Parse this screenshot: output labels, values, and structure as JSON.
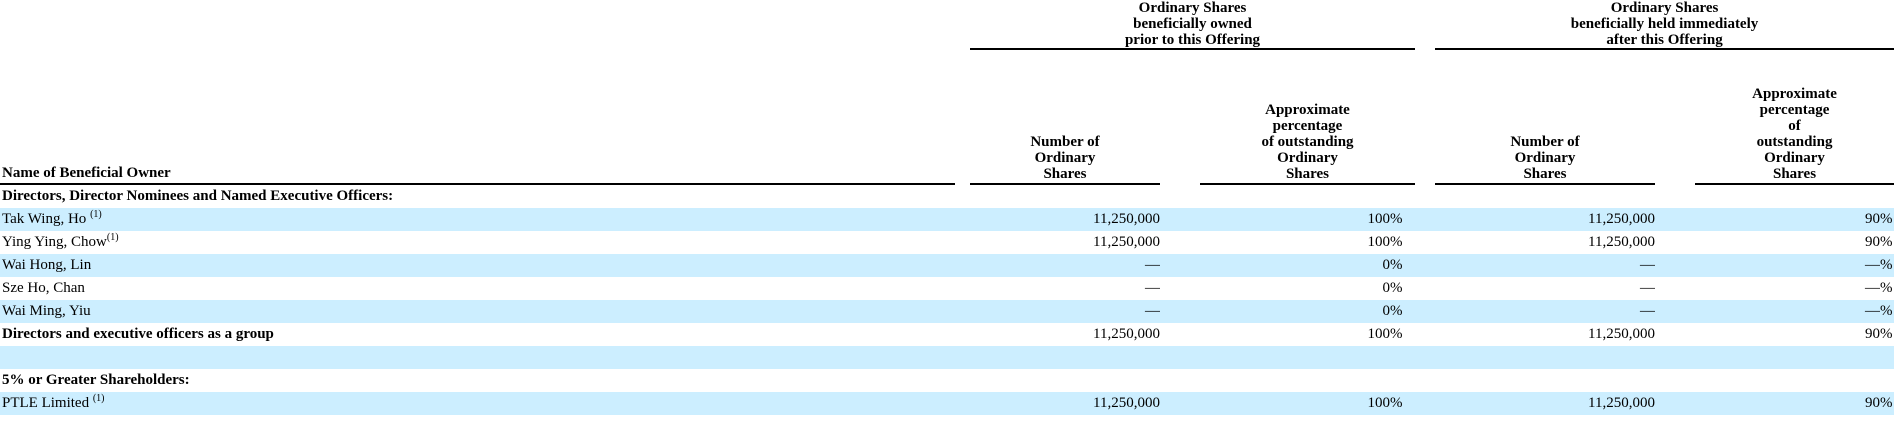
{
  "colors": {
    "row_highlight": "#cceeff",
    "rule": "#000000",
    "text": "#000000",
    "background": "#ffffff"
  },
  "table": {
    "group_headers": [
      {
        "label": "Ordinary Shares\nbeneficially owned\nprior to this Offering"
      },
      {
        "label": "Ordinary Shares\nbeneficially held immediately\nafter this Offering"
      }
    ],
    "columns": {
      "name": "Name of Beneficial Owner",
      "num_prior": "Number of\nOrdinary\nShares",
      "pct_prior": "Approximate\npercentage\nof outstanding\nOrdinary\nShares",
      "num_after": "Number of\nOrdinary\nShares",
      "pct_after": "Approximate\npercentage\nof\noutstanding\nOrdinary\nShares"
    },
    "rows": [
      {
        "label": "Directors, Director Nominees and Named Executive Officers:",
        "sup": "",
        "bold": true,
        "shaded": false,
        "num_prior": "",
        "pct_prior": "",
        "sign_prior": "",
        "num_after": "",
        "pct_after": "",
        "sign_after": ""
      },
      {
        "label": "Tak Wing, Ho ",
        "sup": "(1)",
        "bold": false,
        "shaded": true,
        "num_prior": "11,250,000",
        "pct_prior": "100",
        "sign_prior": "%",
        "num_after": "11,250,000",
        "pct_after": "90",
        "sign_after": "%"
      },
      {
        "label": "Ying Ying, Chow",
        "sup": "(1)",
        "bold": false,
        "shaded": false,
        "num_prior": "11,250,000",
        "pct_prior": "100",
        "sign_prior": "%",
        "num_after": "11,250,000",
        "pct_after": "90",
        "sign_after": "%"
      },
      {
        "label": "Wai Hong, Lin",
        "sup": "",
        "bold": false,
        "shaded": true,
        "num_prior": "—",
        "pct_prior": "0",
        "sign_prior": "%",
        "num_after": "—",
        "pct_after": "—",
        "sign_after": "%"
      },
      {
        "label": "Sze Ho, Chan",
        "sup": "",
        "bold": false,
        "shaded": false,
        "num_prior": "—",
        "pct_prior": "0",
        "sign_prior": "%",
        "num_after": "—",
        "pct_after": "—",
        "sign_after": "%"
      },
      {
        "label": "Wai Ming, Yiu",
        "sup": "",
        "bold": false,
        "shaded": true,
        "num_prior": "—",
        "pct_prior": "0",
        "sign_prior": "%",
        "num_after": "—",
        "pct_after": "—",
        "sign_after": "%"
      },
      {
        "label": "Directors and executive officers as a group",
        "sup": "",
        "bold": true,
        "shaded": false,
        "num_prior": "11,250,000",
        "pct_prior": "100",
        "sign_prior": "%",
        "num_after": "11,250,000",
        "pct_after": "90",
        "sign_after": "%"
      },
      {
        "label": "",
        "sup": "",
        "bold": false,
        "shaded": true,
        "num_prior": "",
        "pct_prior": "",
        "sign_prior": "",
        "num_after": "",
        "pct_after": "",
        "sign_after": ""
      },
      {
        "label": "5% or Greater Shareholders:",
        "sup": "",
        "bold": true,
        "shaded": false,
        "num_prior": "",
        "pct_prior": "",
        "sign_prior": "",
        "num_after": "",
        "pct_after": "",
        "sign_after": ""
      },
      {
        "label": "PTLE Limited ",
        "sup": "(1)",
        "bold": false,
        "shaded": true,
        "num_prior": "11,250,000",
        "pct_prior": "100",
        "sign_prior": "%",
        "num_after": "11,250,000",
        "pct_after": "90",
        "sign_after": "%"
      }
    ]
  }
}
